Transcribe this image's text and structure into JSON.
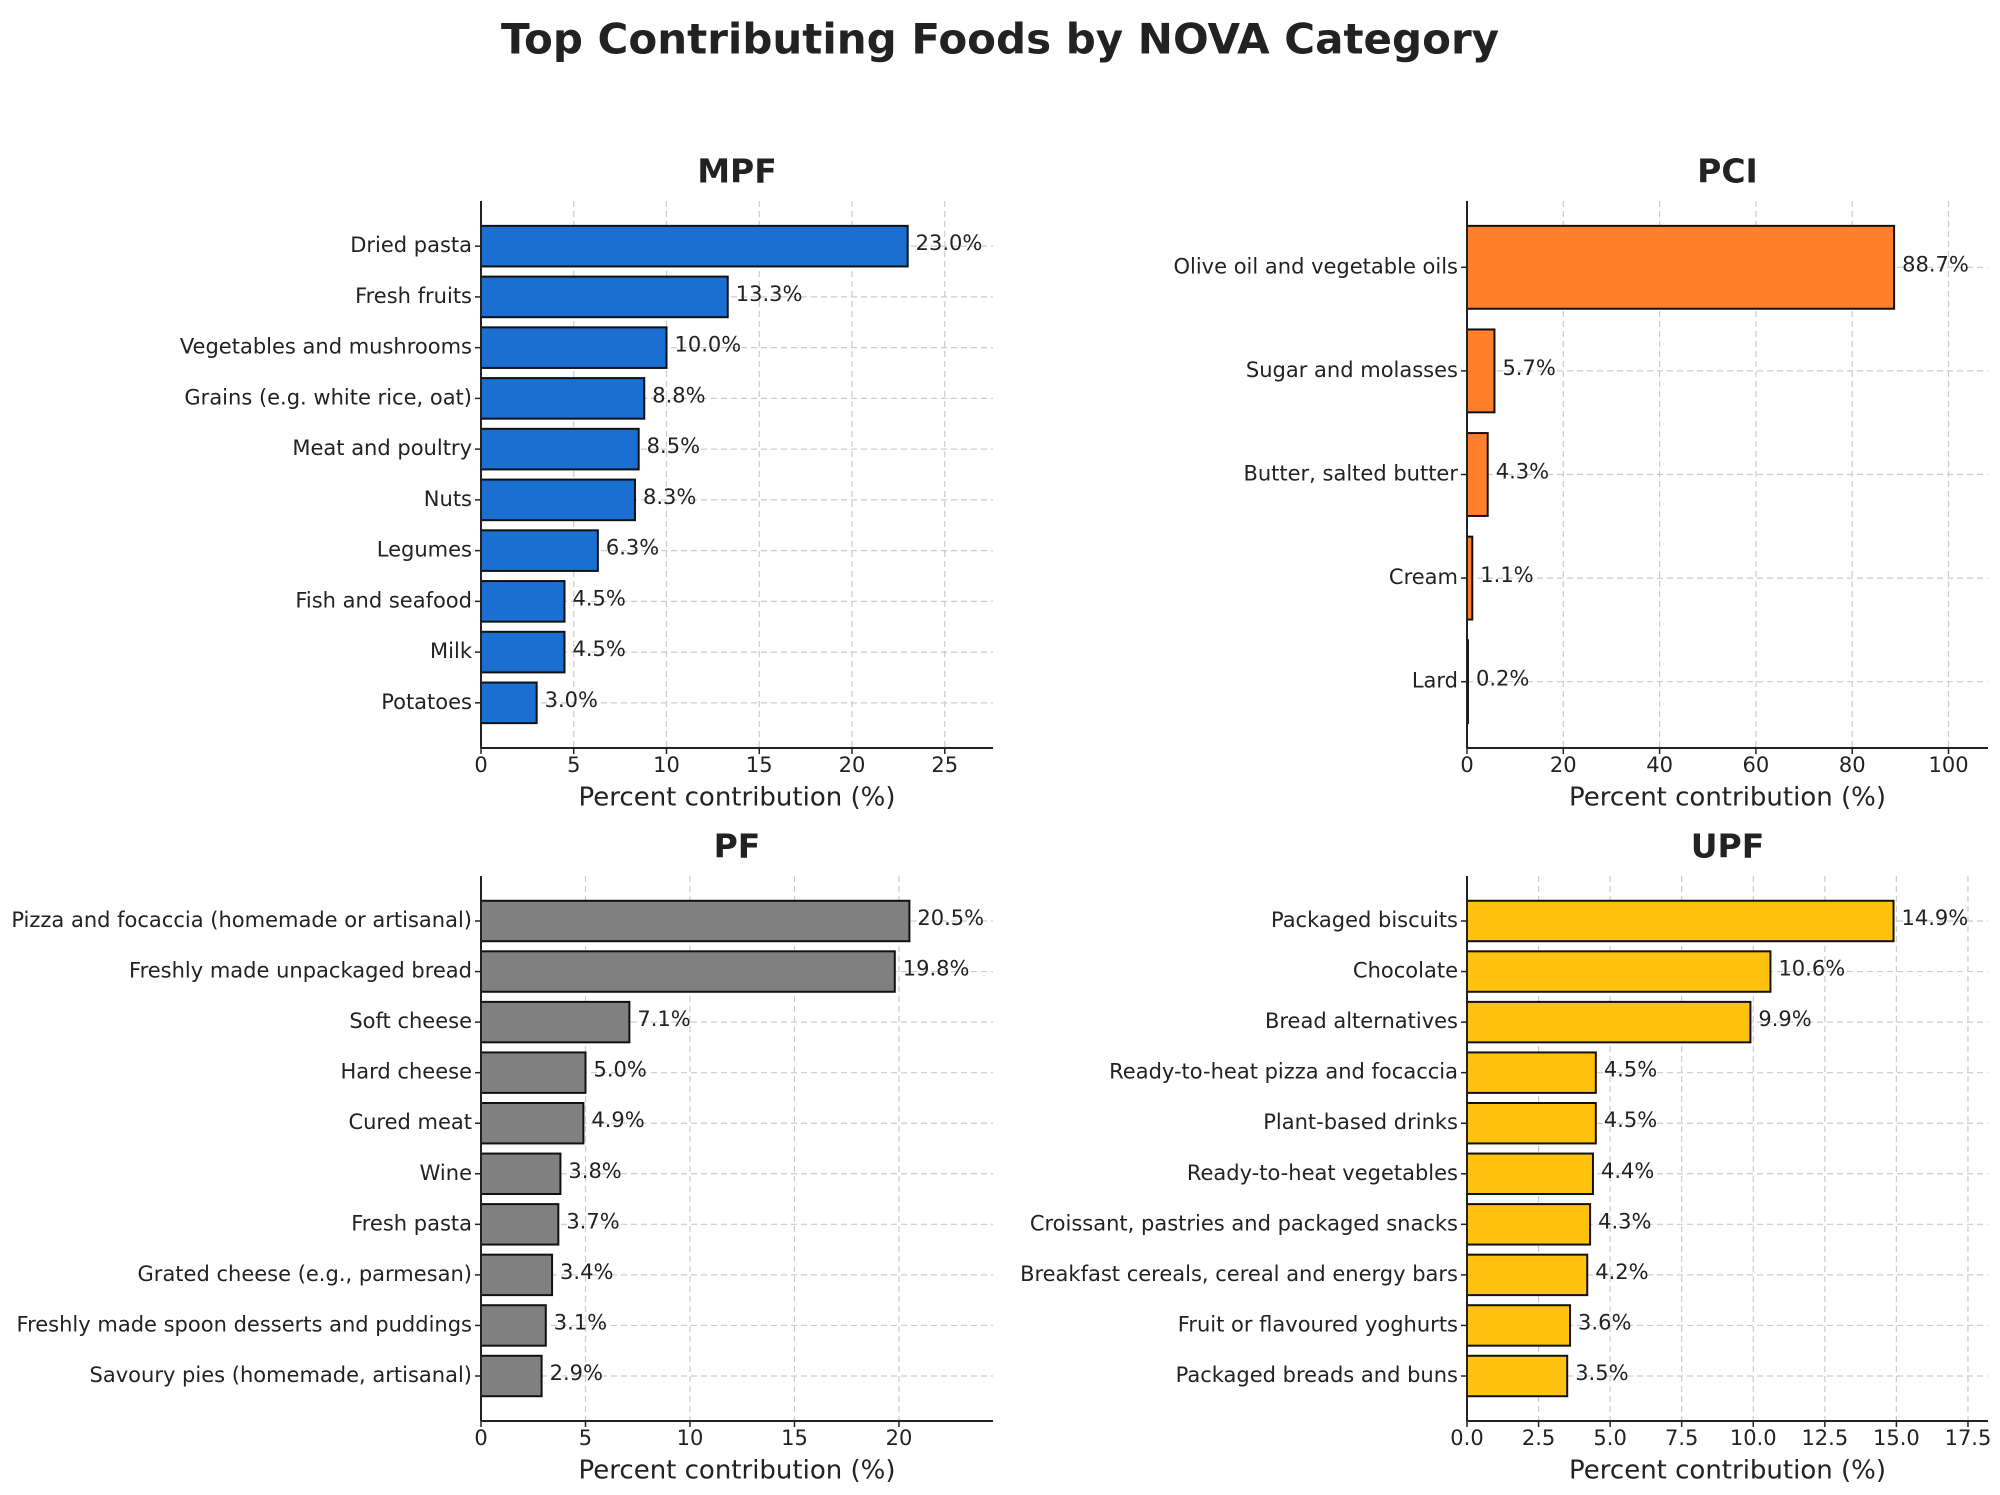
{
  "title": "Top Contributing Foods by NOVA Category",
  "chart_data": [
    {
      "type": "bar",
      "orientation": "horizontal",
      "title": "MPF",
      "xlabel": "Percent contribution (%)",
      "categories": [
        "Dried pasta",
        "Fresh fruits",
        "Vegetables and mushrooms",
        "Grains (e.g. white rice, oat)",
        "Meat and poultry",
        "Nuts",
        "Legumes",
        "Fish and seafood",
        "Milk",
        "Potatoes"
      ],
      "values": [
        23.0,
        13.3,
        10.0,
        8.8,
        8.5,
        8.3,
        6.3,
        4.5,
        4.5,
        3.0
      ],
      "value_labels": [
        "23.0%",
        "13.3%",
        "10.0%",
        "8.8%",
        "8.5%",
        "8.3%",
        "6.3%",
        "4.5%",
        "4.5%",
        "3.0%"
      ],
      "color": "#1a6fd0",
      "xlim": [
        0,
        27.6
      ],
      "xticks": [
        0,
        5,
        10,
        15,
        20,
        25
      ],
      "grid": true
    },
    {
      "type": "bar",
      "orientation": "horizontal",
      "title": "PCI",
      "xlabel": "Percent contribution (%)",
      "categories": [
        "Olive oil and vegetable oils",
        "Sugar and molasses",
        "Butter, salted butter",
        "Cream",
        "Lard"
      ],
      "values": [
        88.7,
        5.7,
        4.3,
        1.1,
        0.2
      ],
      "value_labels": [
        "88.7%",
        "5.7%",
        "4.3%",
        "1.1%",
        "0.2%"
      ],
      "color": "#ff7f2a",
      "xlim": [
        0,
        108.2
      ],
      "xticks": [
        0,
        20,
        40,
        60,
        80,
        100
      ],
      "grid": true
    },
    {
      "type": "bar",
      "orientation": "horizontal",
      "title": "PF",
      "xlabel": "Percent contribution (%)",
      "categories": [
        "Pizza and focaccia (homemade or artisanal)",
        "Freshly made unpackaged bread",
        "Soft cheese",
        "Hard cheese",
        "Cured meat",
        "Wine",
        "Fresh pasta",
        "Grated cheese (e.g., parmesan)",
        "Freshly made spoon desserts and puddings",
        "Savoury pies (homemade, artisanal)"
      ],
      "values": [
        20.5,
        19.8,
        7.1,
        5.0,
        4.9,
        3.8,
        3.7,
        3.4,
        3.1,
        2.9
      ],
      "value_labels": [
        "20.5%",
        "19.8%",
        "7.1%",
        "5.0%",
        "4.9%",
        "3.8%",
        "3.7%",
        "3.4%",
        "3.1%",
        "2.9%"
      ],
      "color": "#808080",
      "xlim": [
        0,
        24.5
      ],
      "xticks": [
        0,
        5,
        10,
        15,
        20
      ],
      "grid": true
    },
    {
      "type": "bar",
      "orientation": "horizontal",
      "title": "UPF",
      "xlabel": "Percent contribution (%)",
      "categories": [
        "Packaged biscuits",
        "Chocolate",
        "Bread alternatives",
        "Ready-to-heat pizza and focaccia",
        "Plant-based drinks",
        "Ready-to-heat vegetables",
        "Croissant, pastries and packaged snacks",
        "Breakfast cereals, cereal and energy bars",
        "Fruit or flavoured yoghurts",
        "Packaged breads and buns"
      ],
      "values": [
        14.9,
        10.6,
        9.9,
        4.5,
        4.5,
        4.4,
        4.3,
        4.2,
        3.6,
        3.5
      ],
      "value_labels": [
        "14.9%",
        "10.6%",
        "9.9%",
        "4.5%",
        "4.5%",
        "4.4%",
        "4.3%",
        "4.2%",
        "3.6%",
        "3.5%"
      ],
      "color": "#ffc20e",
      "xlim": [
        0,
        18.2
      ],
      "xticks": [
        {
          "value": 0,
          "label": "0.0"
        },
        2.5,
        {
          "value": 5,
          "label": "5.0"
        },
        7.5,
        {
          "value": 10,
          "label": "10.0"
        },
        12.5,
        {
          "value": 15,
          "label": "15.0"
        },
        17.5
      ],
      "grid": true
    }
  ]
}
